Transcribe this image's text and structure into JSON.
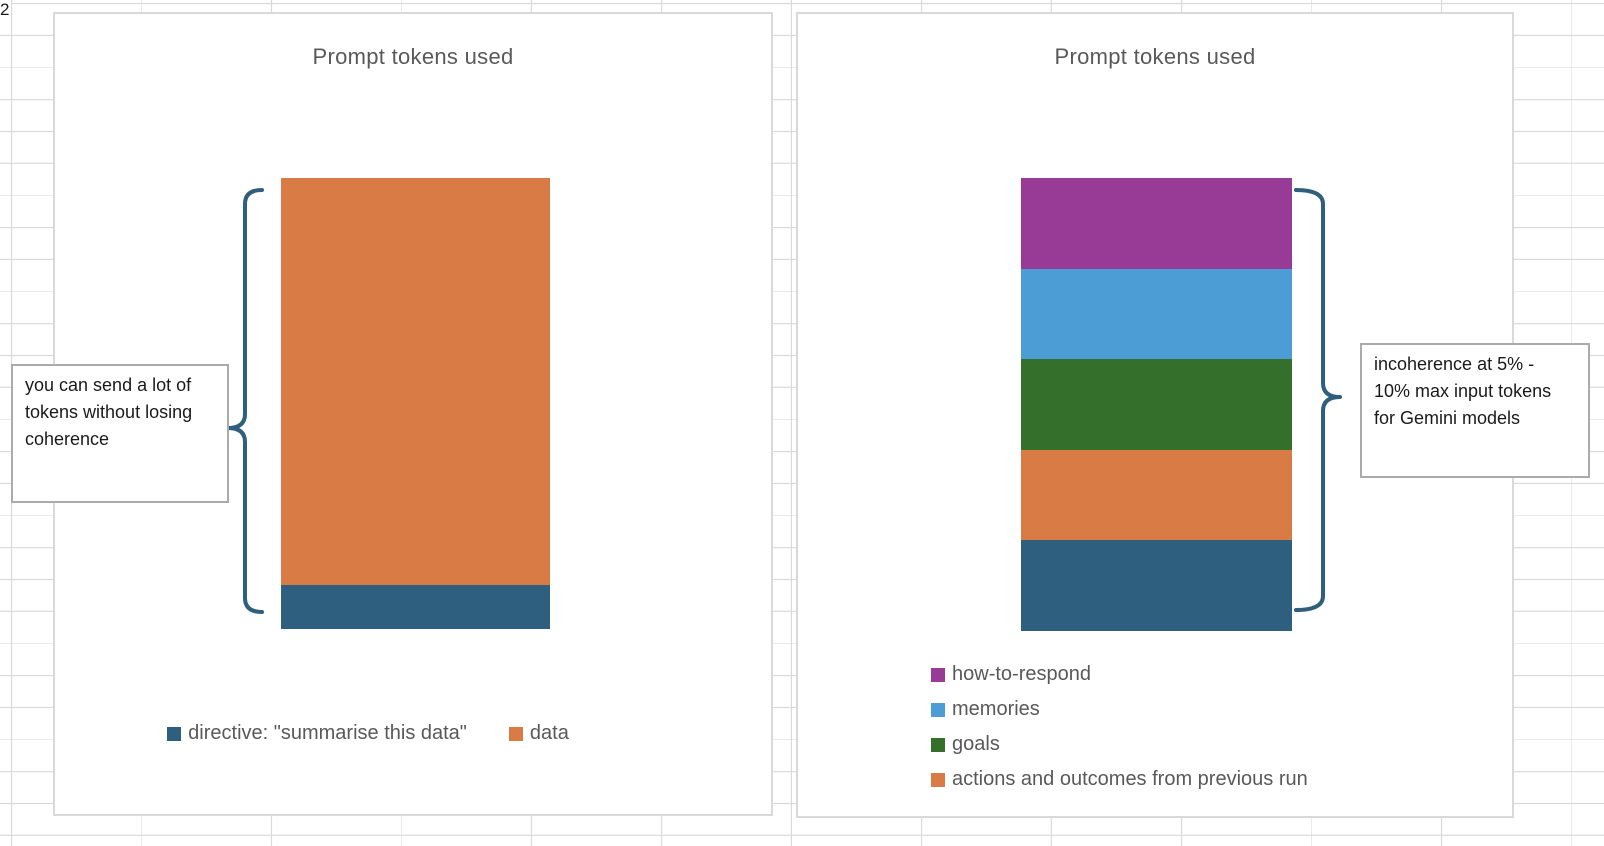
{
  "sheet": {
    "row_header": "2"
  },
  "colors": {
    "dark_blue": "#2E5F7E",
    "orange": "#D87B45",
    "purple": "#983B97",
    "light_blue": "#4C9DD6",
    "green": "#356F2C",
    "title_text": "#595959",
    "legend_text": "#595959",
    "grid_line": "#D9D9D9",
    "chart_border": "#D9D9D9",
    "callout_border": "#ABABAB",
    "brace": "#2F5F7D"
  },
  "chart_data": [
    {
      "type": "bar",
      "subtype": "stacked-single-column",
      "title": "Prompt tokens used",
      "axes_visible": false,
      "grid": false,
      "legend_position": "bottom-horizontal",
      "segments_bottom_to_top": [
        {
          "label": "directive: \"summarise this data\"",
          "color_key": "dark_blue",
          "value_pct": 9.7
        },
        {
          "label": "data",
          "color_key": "orange",
          "value_pct": 90.3
        }
      ],
      "legend": [
        {
          "label": "directive: \"summarise this data\"",
          "color_key": "dark_blue"
        },
        {
          "label": "data",
          "color_key": "orange"
        }
      ],
      "callout": {
        "lines": [
          "you can send a lot of",
          "tokens without losing",
          "coherence"
        ]
      }
    },
    {
      "type": "bar",
      "subtype": "stacked-single-column",
      "title": "Prompt tokens used",
      "axes_visible": false,
      "grid": false,
      "legend_position": "bottom-left-vertical",
      "segments_bottom_to_top": [
        {
          "label": "",
          "color_key": "dark_blue",
          "value_pct": 20
        },
        {
          "label": "actions and outcomes from previous run",
          "color_key": "orange",
          "value_pct": 20
        },
        {
          "label": "goals",
          "color_key": "green",
          "value_pct": 20
        },
        {
          "label": "memories",
          "color_key": "light_blue",
          "value_pct": 20
        },
        {
          "label": "how-to-respond",
          "color_key": "purple",
          "value_pct": 20
        }
      ],
      "legend": [
        {
          "label": "how-to-respond",
          "color_key": "purple"
        },
        {
          "label": "memories",
          "color_key": "light_blue"
        },
        {
          "label": "goals",
          "color_key": "green"
        },
        {
          "label": "actions and outcomes from previous run",
          "color_key": "orange"
        }
      ],
      "callout": {
        "lines": [
          "incoherence at 5% -",
          "10% max input tokens",
          "for Gemini models"
        ]
      }
    }
  ]
}
